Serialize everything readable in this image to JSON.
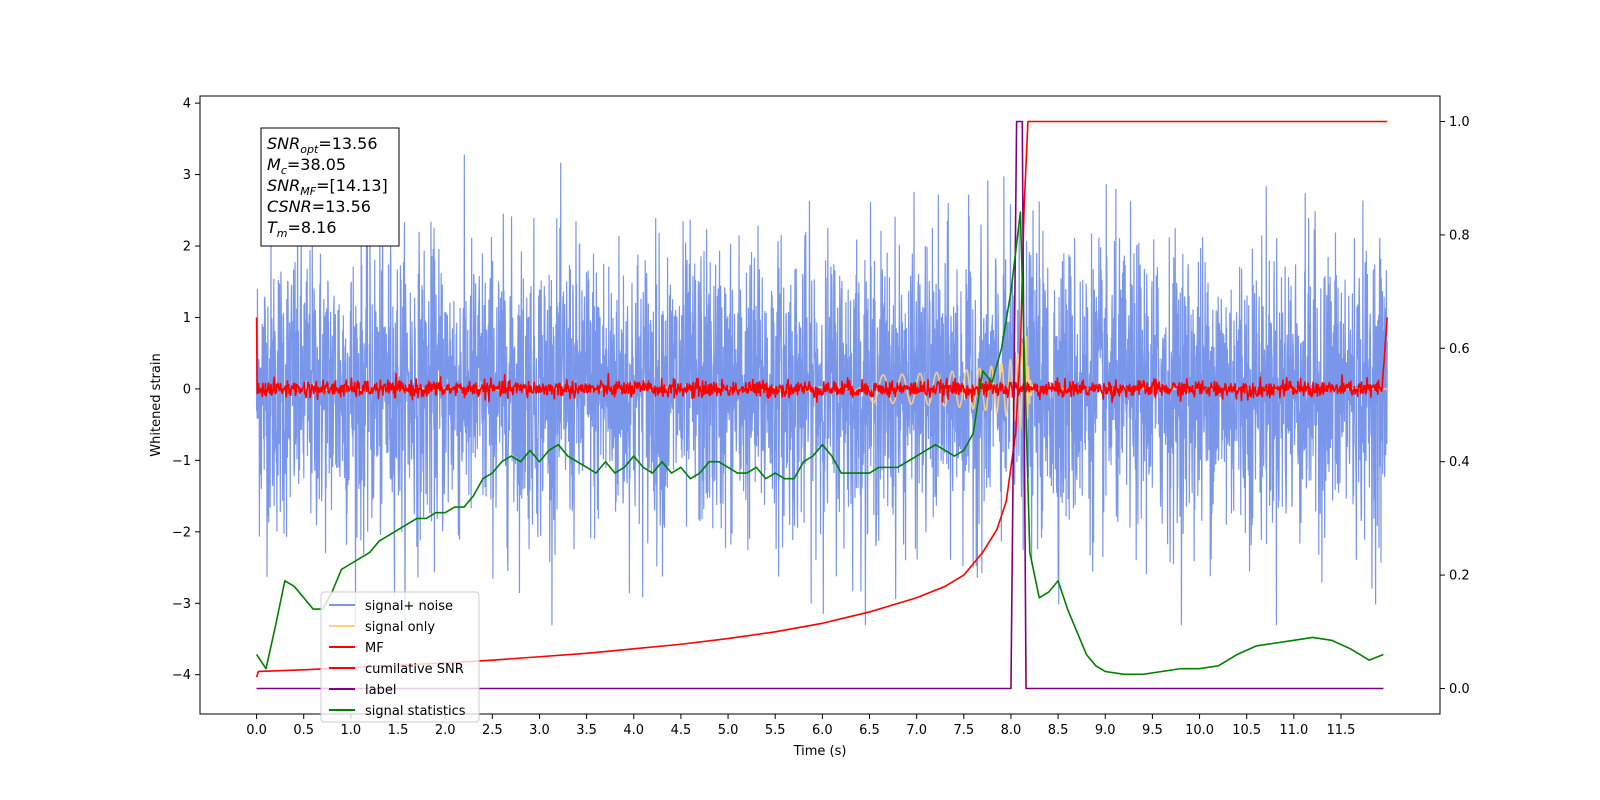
{
  "chart_data": {
    "type": "line",
    "title": "",
    "xlabel": "Time (s)",
    "ylabel": "Whitened strain",
    "y2label": "",
    "xlim": [
      -0.6,
      12.55
    ],
    "ylim": [
      -4.55,
      4.1
    ],
    "y2lim": [
      -0.045,
      1.045
    ],
    "x_ticks": [
      0.0,
      0.5,
      1.0,
      1.5,
      2.0,
      2.5,
      3.0,
      3.5,
      4.0,
      4.5,
      5.0,
      5.5,
      6.0,
      6.5,
      7.0,
      7.5,
      8.0,
      8.5,
      9.0,
      9.5,
      10.0,
      10.5,
      11.0,
      11.5
    ],
    "x_tick_labels": [
      "0.0",
      "0.5",
      "1.0",
      "1.5",
      "2.0",
      "2.5",
      "3.0",
      "3.5",
      "4.0",
      "4.5",
      "5.0",
      "5.5",
      "6.0",
      "6.5",
      "7.0",
      "7.5",
      "8.0",
      "8.5",
      "9.0",
      "9.5",
      "10.0",
      "10.5",
      "11.0",
      "11.5"
    ],
    "y_ticks": [
      -4,
      -3,
      -2,
      -1,
      0,
      1,
      2,
      3,
      4
    ],
    "y_tick_labels": [
      "−4",
      "−3",
      "−2",
      "−1",
      "0",
      "1",
      "2",
      "3",
      "4"
    ],
    "y2_ticks": [
      0.0,
      0.2,
      0.4,
      0.6,
      0.8,
      1.0
    ],
    "y2_tick_labels": [
      "0.0",
      "0.2",
      "0.4",
      "0.6",
      "0.8",
      "1.0"
    ],
    "grid": false,
    "legend_position": "lower-left",
    "annotation": [
      {
        "base": "SNR",
        "sub": "opt",
        "rest": "=13.56"
      },
      {
        "base": "M",
        "sub": "c",
        "rest": "=38.05"
      },
      {
        "base": "SNR",
        "sub": "MF",
        "rest": "=[14.13]"
      },
      {
        "base": "CSNR",
        "sub": "",
        "rest": "=13.56"
      },
      {
        "base": "T",
        "sub": "m",
        "rest": "=8.16"
      }
    ],
    "series": [
      {
        "name": "signal+ noise",
        "color": "#4169e1",
        "axis": "left",
        "style": "noise",
        "x_range": [
          0.0,
          11.99
        ],
        "amplitude": 1.0,
        "peak_range": [
          -3.3,
          3.7
        ]
      },
      {
        "name": "signal only",
        "color": "#ffd27f",
        "axis": "left",
        "style": "chirp",
        "x_range": [
          0.0,
          11.99
        ],
        "merger_time": 8.16,
        "peak_amplitude": 0.9
      },
      {
        "name": "MF",
        "color": "#ff0000",
        "axis": "left",
        "style": "mf",
        "x_range": [
          0.0,
          11.99
        ],
        "start_value": 1.0,
        "end_value": 1.0
      },
      {
        "name": "cumilative SNR",
        "color": "#ff0000",
        "axis": "right",
        "x": [
          0.0,
          0.02,
          0.5,
          1.0,
          1.5,
          2.0,
          2.5,
          3.0,
          3.5,
          4.0,
          4.5,
          5.0,
          5.5,
          6.0,
          6.5,
          7.0,
          7.3,
          7.5,
          7.7,
          7.85,
          7.95,
          8.05,
          8.1,
          8.14,
          8.18,
          8.3,
          11.99
        ],
        "y": [
          0.02,
          0.03,
          0.033,
          0.037,
          0.041,
          0.045,
          0.05,
          0.056,
          0.062,
          0.07,
          0.078,
          0.088,
          0.1,
          0.115,
          0.135,
          0.16,
          0.18,
          0.2,
          0.24,
          0.28,
          0.33,
          0.45,
          0.6,
          0.85,
          1.0,
          1.0,
          1.0
        ]
      },
      {
        "name": "label",
        "color": "#800080",
        "axis": "right",
        "x": [
          0.0,
          8.0,
          8.06,
          8.12,
          8.16,
          11.95
        ],
        "y": [
          0.0,
          0.0,
          1.0,
          1.0,
          0.0,
          0.0
        ]
      },
      {
        "name": "signal statistics",
        "color": "#008000",
        "axis": "right",
        "x": [
          0.0,
          0.1,
          0.2,
          0.3,
          0.4,
          0.5,
          0.6,
          0.7,
          0.8,
          0.9,
          1.0,
          1.1,
          1.2,
          1.3,
          1.4,
          1.5,
          1.6,
          1.7,
          1.8,
          1.9,
          2.0,
          2.1,
          2.2,
          2.3,
          2.4,
          2.5,
          2.6,
          2.7,
          2.8,
          2.9,
          3.0,
          3.1,
          3.2,
          3.3,
          3.4,
          3.5,
          3.6,
          3.7,
          3.8,
          3.9,
          4.0,
          4.1,
          4.2,
          4.3,
          4.4,
          4.5,
          4.6,
          4.7,
          4.8,
          4.9,
          5.0,
          5.1,
          5.2,
          5.3,
          5.4,
          5.5,
          5.6,
          5.7,
          5.8,
          5.9,
          6.0,
          6.1,
          6.2,
          6.3,
          6.4,
          6.5,
          6.6,
          6.7,
          6.8,
          6.9,
          7.0,
          7.1,
          7.2,
          7.3,
          7.4,
          7.5,
          7.6,
          7.7,
          7.8,
          7.9,
          8.0,
          8.1,
          8.2,
          8.3,
          8.4,
          8.5,
          8.6,
          8.7,
          8.8,
          8.9,
          9.0,
          9.2,
          9.4,
          9.6,
          9.8,
          10.0,
          10.2,
          10.4,
          10.6,
          10.8,
          11.0,
          11.2,
          11.4,
          11.6,
          11.8,
          11.95
        ],
        "y": [
          0.06,
          0.035,
          0.11,
          0.19,
          0.18,
          0.16,
          0.14,
          0.14,
          0.17,
          0.21,
          0.22,
          0.23,
          0.24,
          0.26,
          0.27,
          0.28,
          0.29,
          0.3,
          0.3,
          0.31,
          0.31,
          0.32,
          0.32,
          0.34,
          0.37,
          0.38,
          0.4,
          0.41,
          0.4,
          0.42,
          0.4,
          0.42,
          0.43,
          0.41,
          0.4,
          0.39,
          0.38,
          0.4,
          0.38,
          0.39,
          0.41,
          0.39,
          0.38,
          0.4,
          0.38,
          0.39,
          0.37,
          0.38,
          0.4,
          0.4,
          0.39,
          0.38,
          0.38,
          0.39,
          0.37,
          0.38,
          0.37,
          0.37,
          0.4,
          0.41,
          0.43,
          0.41,
          0.38,
          0.38,
          0.38,
          0.38,
          0.39,
          0.39,
          0.39,
          0.4,
          0.41,
          0.42,
          0.43,
          0.42,
          0.41,
          0.42,
          0.45,
          0.56,
          0.54,
          0.6,
          0.7,
          0.84,
          0.24,
          0.16,
          0.17,
          0.19,
          0.14,
          0.1,
          0.06,
          0.04,
          0.03,
          0.025,
          0.025,
          0.03,
          0.035,
          0.035,
          0.04,
          0.06,
          0.075,
          0.08,
          0.085,
          0.09,
          0.085,
          0.07,
          0.05,
          0.06
        ]
      }
    ]
  }
}
